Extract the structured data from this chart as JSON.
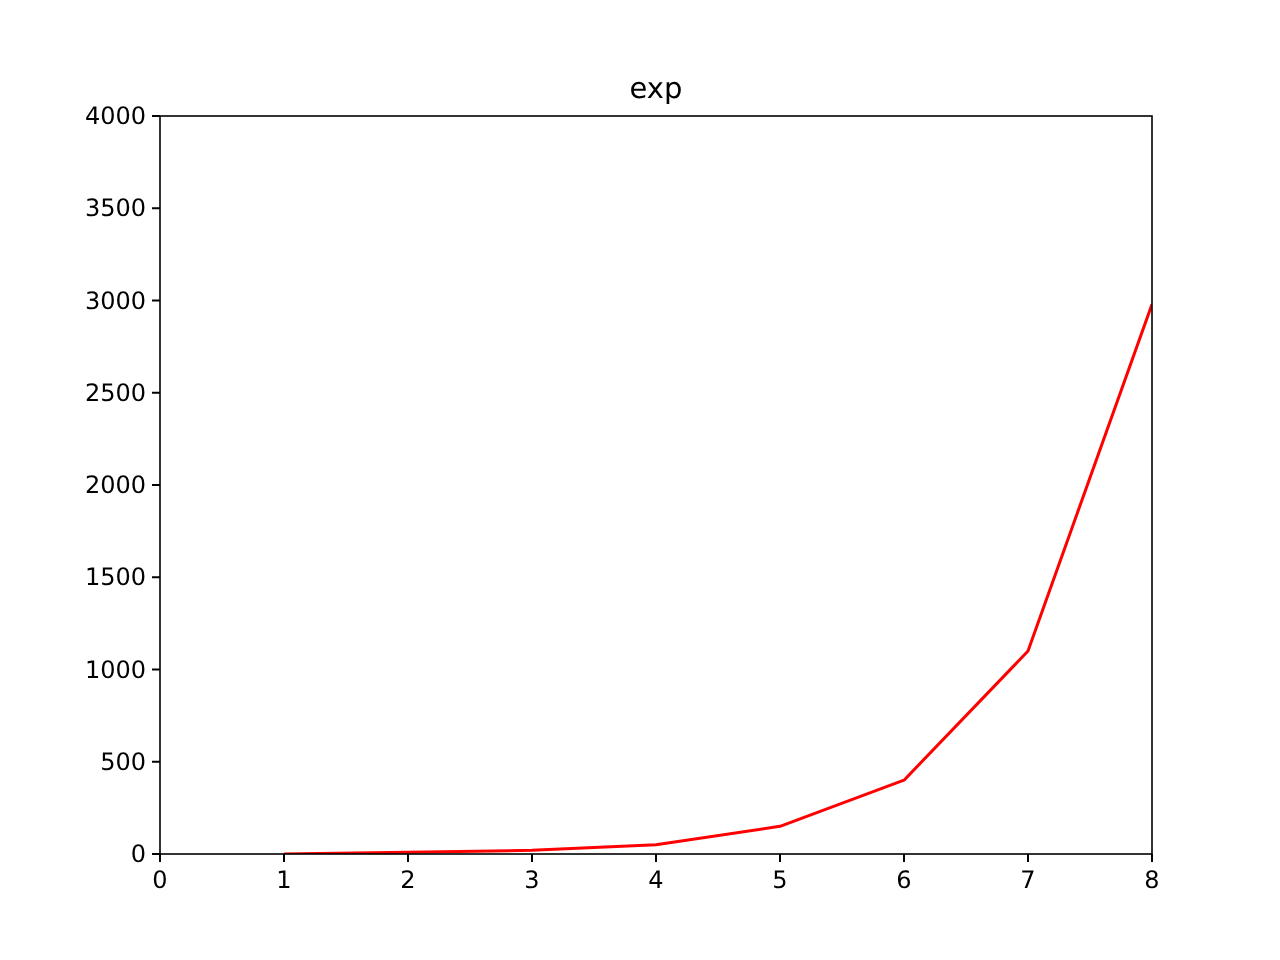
{
  "chart_data": {
    "type": "line",
    "title": "exp",
    "x": [
      1,
      2,
      3,
      4,
      5,
      6,
      7,
      8
    ],
    "series": [
      {
        "color": "#ff0000",
        "values": [
          0,
          10,
          20,
          50,
          150,
          400,
          1100,
          2980
        ]
      }
    ],
    "xlim": [
      0,
      8
    ],
    "xticks": [
      0,
      1,
      2,
      3,
      4,
      5,
      6,
      7,
      8
    ],
    "ylim": [
      0,
      4000
    ],
    "yticks": [
      0,
      500,
      1000,
      1500,
      2000,
      2500,
      3000,
      3500,
      4000
    ],
    "grid": false,
    "marker": "none",
    "line_style": "solid"
  }
}
